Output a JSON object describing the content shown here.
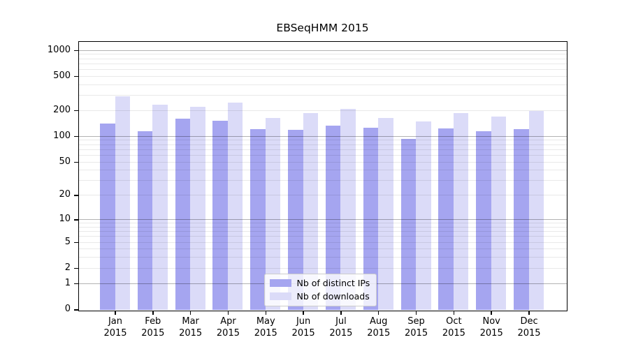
{
  "chart_data": {
    "type": "bar",
    "title": "EBSeqHMM 2015",
    "xlabel": "",
    "ylabel": "",
    "categories": [
      "Jan",
      "Feb",
      "Mar",
      "Apr",
      "May",
      "Jun",
      "Jul",
      "Aug",
      "Sep",
      "Oct",
      "Nov",
      "Dec"
    ],
    "x_tick_second_line": "2015",
    "series": [
      {
        "name": "Nb of distinct IPs",
        "color": "#a5a5f0",
        "values": [
          140,
          114,
          159,
          151,
          120,
          119,
          132,
          125,
          93,
          123,
          114,
          121
        ]
      },
      {
        "name": "Nb of downloads",
        "color": "#dbdbf8",
        "values": [
          288,
          230,
          221,
          246,
          163,
          185,
          206,
          161,
          147,
          185,
          168,
          195
        ]
      }
    ],
    "yscale": "log10(1+v)",
    "ylim": [
      0,
      1265
    ],
    "y_ticks": [
      0,
      1,
      2,
      5,
      10,
      20,
      50,
      100,
      200,
      500,
      1000
    ],
    "y_major_gridlines": [
      1,
      10,
      100,
      1000
    ],
    "y_minor_gridlines": [
      2,
      3,
      4,
      5,
      6,
      7,
      8,
      9,
      20,
      30,
      40,
      50,
      60,
      70,
      80,
      90,
      200,
      300,
      400,
      500,
      600,
      700,
      800,
      900
    ],
    "grid": true,
    "legend_position": "lower center inside plot",
    "colors": {
      "major_grid": "#b3b3b3",
      "minor_grid": "#e8e8e8",
      "axis": "#000000",
      "background": "#ffffff"
    }
  }
}
